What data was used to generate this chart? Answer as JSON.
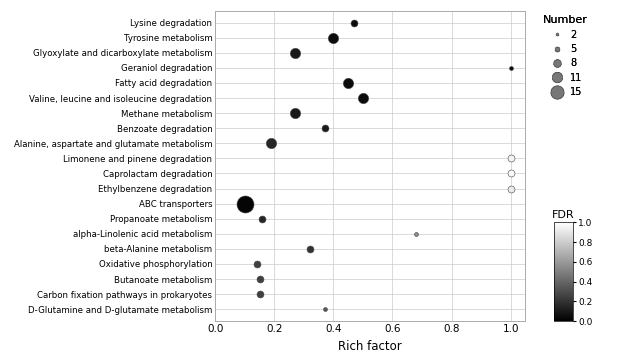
{
  "categories": [
    "Lysine degradation",
    "Tyrosine metabolism",
    "Glyoxylate and dicarboxylate metabolism",
    "Geraniol degradation",
    "Fatty acid degradation",
    "Valine, leucine and isoleucine degradation",
    "Methane metabolism",
    "Benzoate degradation",
    "Alanine, aspartate and glutamate metabolism",
    "Limonene and pinene degradation",
    "Caprolactam degradation",
    "Ethylbenzene degradation",
    "ABC transporters",
    "Propanoate metabolism",
    "alpha-Linolenic acid metabolism",
    "beta-Alanine metabolism",
    "Oxidative phosphorylation",
    "Butanoate metabolism",
    "Carbon fixation pathways in prokaryotes",
    "D-Glutamine and D-glutamate metabolism"
  ],
  "rich_factor": [
    0.47,
    0.4,
    0.27,
    1.0,
    0.45,
    0.5,
    0.27,
    0.37,
    0.19,
    1.0,
    1.0,
    1.0,
    0.1,
    0.16,
    0.68,
    0.32,
    0.14,
    0.15,
    0.15,
    0.37
  ],
  "number": [
    5,
    8,
    8,
    2,
    8,
    8,
    8,
    5,
    8,
    5,
    5,
    5,
    15,
    5,
    2,
    5,
    5,
    5,
    5,
    2
  ],
  "fdr": [
    0.05,
    0.05,
    0.1,
    0.05,
    0.05,
    0.05,
    0.1,
    0.1,
    0.15,
    0.95,
    0.98,
    0.92,
    0.02,
    0.15,
    0.55,
    0.2,
    0.25,
    0.25,
    0.25,
    0.35
  ],
  "xlabel": "Rich factor",
  "xlim": [
    0.0,
    1.05
  ],
  "xticks": [
    0.0,
    0.2,
    0.4,
    0.6,
    0.8,
    1.0
  ],
  "size_scale": {
    "2": 8,
    "5": 25,
    "8": 55,
    "11": 95,
    "15": 150
  },
  "legend_sizes": [
    2,
    5,
    8,
    11,
    15
  ],
  "legend_marker_sizes_pt": [
    2.0,
    3.5,
    5.5,
    7.5,
    9.5
  ],
  "background_color": "#ffffff",
  "grid_color": "#cccccc",
  "dot_edge_color": "#444444",
  "fdr_cmap": "gray"
}
